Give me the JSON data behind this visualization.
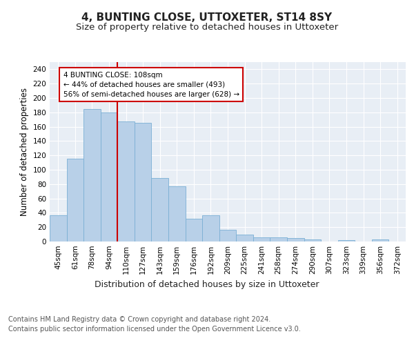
{
  "title": "4, BUNTING CLOSE, UTTOXETER, ST14 8SY",
  "subtitle": "Size of property relative to detached houses in Uttoxeter",
  "xlabel": "Distribution of detached houses by size in Uttoxeter",
  "ylabel": "Number of detached properties",
  "categories": [
    "45sqm",
    "61sqm",
    "78sqm",
    "94sqm",
    "110sqm",
    "127sqm",
    "143sqm",
    "159sqm",
    "176sqm",
    "192sqm",
    "209sqm",
    "225sqm",
    "241sqm",
    "258sqm",
    "274sqm",
    "290sqm",
    "307sqm",
    "323sqm",
    "339sqm",
    "356sqm",
    "372sqm"
  ],
  "values": [
    37,
    115,
    185,
    180,
    167,
    165,
    88,
    77,
    32,
    37,
    16,
    10,
    6,
    6,
    5,
    3,
    0,
    2,
    0,
    3,
    0
  ],
  "bar_color": "#b8d0e8",
  "bar_edgecolor": "#7aafd4",
  "vline_x": 4,
  "vline_color": "#cc0000",
  "annotation_text": "4 BUNTING CLOSE: 108sqm\n← 44% of detached houses are smaller (493)\n56% of semi-detached houses are larger (628) →",
  "annotation_box_color": "#ffffff",
  "annotation_box_edgecolor": "#cc0000",
  "ylim": [
    0,
    250
  ],
  "yticks": [
    0,
    20,
    40,
    60,
    80,
    100,
    120,
    140,
    160,
    180,
    200,
    220,
    240
  ],
  "bg_color": "#e8eef5",
  "fig_bg_color": "#ffffff",
  "footer_line1": "Contains HM Land Registry data © Crown copyright and database right 2024.",
  "footer_line2": "Contains public sector information licensed under the Open Government Licence v3.0.",
  "title_fontsize": 11,
  "subtitle_fontsize": 9.5,
  "xlabel_fontsize": 9,
  "ylabel_fontsize": 8.5,
  "tick_fontsize": 7.5,
  "footer_fontsize": 7
}
